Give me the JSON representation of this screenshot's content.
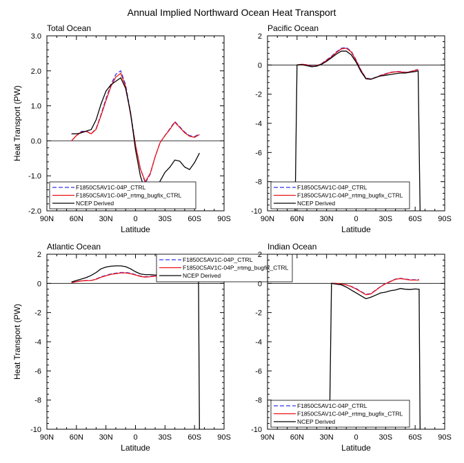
{
  "title": "Annual Implied Northward Ocean Heat Transport",
  "colors": {
    "ctrl": "#3333ee",
    "bugfix": "#ee1111",
    "ncep": "#000000"
  },
  "series_styles": [
    {
      "key": "ctrl",
      "dash": true
    },
    {
      "key": "bugfix",
      "dash": false
    },
    {
      "key": "ncep",
      "dash": false
    }
  ],
  "chart_data": [
    {
      "type": "line",
      "title": "Total Ocean",
      "xlabel": "Latitude",
      "ylabel": "Heat Transport (PW)",
      "xlim": [
        90,
        -90
      ],
      "ylim": [
        -2,
        3
      ],
      "x_ticks": [
        90,
        60,
        30,
        0,
        -30,
        -60,
        -90
      ],
      "x_tick_labels": [
        "90N",
        "60N",
        "30N",
        "0",
        "30S",
        "60S",
        "90S"
      ],
      "y_ticks": [
        -2,
        -1,
        0,
        1,
        2,
        3
      ],
      "y_tick_labels": [
        "-2.0",
        "-1.0",
        "0.0",
        "1.0",
        "2.0",
        "3.0"
      ],
      "legend_position": "bottom-left",
      "zero_line": true,
      "series": [
        {
          "name": "F1850C5AV1C-04P_CTRL",
          "x": [
            65,
            60,
            55,
            50,
            45,
            40,
            35,
            30,
            25,
            20,
            15,
            10,
            5,
            0,
            -5,
            -10,
            -15,
            -20,
            -25,
            -30,
            -35,
            -40,
            -45,
            -50,
            -55,
            -60,
            -65
          ],
          "y": [
            0,
            0.15,
            0.27,
            0.28,
            0.2,
            0.35,
            0.75,
            1.2,
            1.6,
            1.9,
            2.0,
            1.6,
            0.8,
            -0.1,
            -0.8,
            -1.2,
            -0.95,
            -0.45,
            -0.05,
            0.15,
            0.35,
            0.55,
            0.4,
            0.25,
            0.15,
            0.12,
            0.2
          ]
        },
        {
          "name": "F1850C5AV1C-04P_rrtmg_bugfix_CTRL",
          "x": [
            65,
            60,
            55,
            50,
            45,
            40,
            35,
            30,
            25,
            20,
            15,
            10,
            5,
            0,
            -5,
            -10,
            -15,
            -20,
            -25,
            -30,
            -35,
            -40,
            -45,
            -50,
            -55,
            -60,
            -65
          ],
          "y": [
            0,
            0.15,
            0.25,
            0.27,
            0.2,
            0.33,
            0.72,
            1.15,
            1.55,
            1.82,
            1.93,
            1.55,
            0.75,
            -0.12,
            -0.8,
            -1.17,
            -0.93,
            -0.45,
            -0.05,
            0.15,
            0.33,
            0.53,
            0.38,
            0.23,
            0.13,
            0.1,
            0.18
          ]
        },
        {
          "name": "NCEP Derived",
          "x": [
            65,
            60,
            55,
            50,
            45,
            40,
            35,
            30,
            25,
            20,
            15,
            10,
            5,
            0,
            -5,
            -10,
            -15,
            -20,
            -25,
            -30,
            -35,
            -40,
            -45,
            -50,
            -55,
            -60,
            -65
          ],
          "y": [
            0.2,
            0.2,
            0.23,
            0.28,
            0.32,
            0.6,
            1.05,
            1.42,
            1.6,
            1.7,
            1.8,
            1.5,
            0.8,
            -0.25,
            -1.0,
            -1.45,
            -1.6,
            -1.4,
            -1.15,
            -0.9,
            -0.75,
            -0.55,
            -0.58,
            -0.75,
            -0.82,
            -0.62,
            -0.35
          ]
        }
      ]
    },
    {
      "type": "line",
      "title": "Pacific Ocean",
      "xlabel": "Latitude",
      "ylabel": "",
      "xlim": [
        90,
        -90
      ],
      "ylim": [
        -10,
        2
      ],
      "x_ticks": [
        90,
        60,
        30,
        0,
        -30,
        -60,
        -90
      ],
      "x_tick_labels": [
        "90N",
        "60N",
        "30N",
        "0",
        "30S",
        "60S",
        "90S"
      ],
      "y_ticks": [
        -10,
        -8,
        -6,
        -4,
        -2,
        0,
        2
      ],
      "y_tick_labels": [
        "-10",
        "-8",
        "-6",
        "-4",
        "-2",
        "0",
        "2"
      ],
      "legend_position": "bottom-left",
      "zero_line": true,
      "series": [
        {
          "name": "F1850C5AV1C-04P_CTRL",
          "x": [
            60,
            55,
            50,
            45,
            40,
            35,
            30,
            25,
            20,
            15,
            10,
            5,
            0,
            -5,
            -10,
            -15,
            -20,
            -25,
            -30,
            -35,
            -40,
            -45,
            -50,
            -55,
            -60,
            -63
          ],
          "y": [
            0,
            0.05,
            0.02,
            -0.08,
            -0.05,
            0.1,
            0.35,
            0.6,
            0.9,
            1.15,
            1.2,
            0.95,
            0.35,
            -0.35,
            -0.9,
            -0.95,
            -0.85,
            -0.7,
            -0.6,
            -0.5,
            -0.45,
            -0.45,
            -0.5,
            -0.45,
            -0.35,
            -0.3
          ]
        },
        {
          "name": "F1850C5AV1C-04P_rrtmg_bugfix_CTRL",
          "x": [
            60,
            55,
            50,
            45,
            40,
            35,
            30,
            25,
            20,
            15,
            10,
            5,
            0,
            -5,
            -10,
            -15,
            -20,
            -25,
            -30,
            -35,
            -40,
            -45,
            -50,
            -55,
            -60,
            -63
          ],
          "y": [
            0,
            0.05,
            0.0,
            -0.1,
            -0.05,
            0.08,
            0.32,
            0.55,
            0.85,
            1.1,
            1.15,
            0.9,
            0.3,
            -0.38,
            -0.92,
            -0.97,
            -0.87,
            -0.72,
            -0.62,
            -0.52,
            -0.47,
            -0.47,
            -0.52,
            -0.47,
            -0.37,
            -0.32
          ]
        },
        {
          "name": "NCEP Derived",
          "x": [
            62,
            60,
            55,
            50,
            45,
            40,
            35,
            30,
            25,
            20,
            15,
            10,
            5,
            0,
            -5,
            -10,
            -15,
            -20,
            -25,
            -30,
            -35,
            -40,
            -45,
            -50,
            -55,
            -60,
            -63,
            -65
          ],
          "y": [
            -10,
            0,
            0.02,
            -0.05,
            -0.12,
            -0.08,
            0.05,
            0.25,
            0.5,
            0.75,
            0.95,
            0.95,
            0.7,
            0.2,
            -0.45,
            -0.95,
            -0.98,
            -0.85,
            -0.75,
            -0.7,
            -0.65,
            -0.6,
            -0.55,
            -0.55,
            -0.5,
            -0.45,
            -0.4,
            -10
          ]
        }
      ]
    },
    {
      "type": "line",
      "title": "Atlantic Ocean",
      "xlabel": "Latitude",
      "ylabel": "Heat Transport (PW)",
      "xlim": [
        90,
        -90
      ],
      "ylim": [
        -10,
        2
      ],
      "x_ticks": [
        90,
        60,
        30,
        0,
        -30,
        -60,
        -90
      ],
      "x_tick_labels": [
        "90N",
        "60N",
        "30N",
        "0",
        "30S",
        "60S",
        "90S"
      ],
      "y_ticks": [
        -10,
        -8,
        -6,
        -4,
        -2,
        0,
        2
      ],
      "y_tick_labels": [
        "-10",
        "-8",
        "-6",
        "-4",
        "-2",
        "0",
        "2"
      ],
      "legend_position": "top-center",
      "zero_line": true,
      "series": [
        {
          "name": "F1850C5AV1C-04P_CTRL",
          "x": [
            65,
            60,
            55,
            50,
            45,
            40,
            35,
            30,
            25,
            20,
            15,
            10,
            5,
            0,
            -5,
            -10,
            -15,
            -20,
            -25,
            -30,
            -35,
            -40,
            -45,
            -50,
            -55,
            -60,
            -64
          ],
          "y": [
            0.05,
            0.12,
            0.18,
            0.2,
            0.2,
            0.3,
            0.45,
            0.55,
            0.65,
            0.7,
            0.75,
            0.75,
            0.7,
            0.6,
            0.5,
            0.45,
            0.48,
            0.52,
            0.55,
            0.58,
            0.62,
            0.65,
            0.6,
            0.55,
            0.58,
            0.6,
            0.62
          ]
        },
        {
          "name": "F1850C5AV1C-04P_rrtmg_bugfix_CTRL",
          "x": [
            65,
            60,
            55,
            50,
            45,
            40,
            35,
            30,
            25,
            20,
            15,
            10,
            5,
            0,
            -5,
            -10,
            -15,
            -20,
            -25,
            -30,
            -35,
            -40,
            -45,
            -50,
            -55,
            -60,
            -64
          ],
          "y": [
            0.05,
            0.12,
            0.17,
            0.19,
            0.2,
            0.28,
            0.42,
            0.52,
            0.62,
            0.67,
            0.72,
            0.72,
            0.67,
            0.58,
            0.48,
            0.43,
            0.46,
            0.5,
            0.53,
            0.56,
            0.6,
            0.63,
            0.58,
            0.53,
            0.56,
            0.58,
            0.6
          ]
        },
        {
          "name": "NCEP Derived",
          "x": [
            65,
            60,
            55,
            50,
            45,
            40,
            35,
            30,
            25,
            20,
            15,
            10,
            5,
            0,
            -5,
            -10,
            -15,
            -20,
            -25,
            -30,
            -35,
            -40,
            -45,
            -50,
            -55,
            -60,
            -64,
            -65
          ],
          "y": [
            0.1,
            0.2,
            0.3,
            0.4,
            0.55,
            0.75,
            1.0,
            1.12,
            1.18,
            1.2,
            1.2,
            1.15,
            1.0,
            0.8,
            0.65,
            0.6,
            0.6,
            0.58,
            0.55,
            0.52,
            0.5,
            0.48,
            0.45,
            0.45,
            0.45,
            0.45,
            0.4,
            -10
          ]
        }
      ]
    },
    {
      "type": "line",
      "title": "Indian Ocean",
      "xlabel": "Latitude",
      "ylabel": "",
      "xlim": [
        90,
        -90
      ],
      "ylim": [
        -10,
        2
      ],
      "x_ticks": [
        90,
        60,
        30,
        0,
        -30,
        -60,
        -90
      ],
      "x_tick_labels": [
        "90N",
        "60N",
        "30N",
        "0",
        "30S",
        "60S",
        "90S"
      ],
      "y_ticks": [
        -10,
        -8,
        -6,
        -4,
        -2,
        0,
        2
      ],
      "y_tick_labels": [
        "-10",
        "-8",
        "-6",
        "-4",
        "-2",
        "0",
        "2"
      ],
      "legend_position": "bottom-left",
      "zero_line": true,
      "series": [
        {
          "name": "F1850C5AV1C-04P_CTRL",
          "x": [
            25,
            20,
            15,
            10,
            5,
            0,
            -5,
            -10,
            -15,
            -20,
            -25,
            -30,
            -35,
            -40,
            -45,
            -50,
            -55,
            -60,
            -64
          ],
          "y": [
            0,
            0,
            -0.05,
            -0.1,
            -0.2,
            -0.35,
            -0.55,
            -0.75,
            -0.7,
            -0.45,
            -0.2,
            0,
            0.15,
            0.3,
            0.35,
            0.3,
            0.25,
            0.25,
            0.25
          ]
        },
        {
          "name": "F1850C5AV1C-04P_rrtmg_bugfix_CTRL",
          "x": [
            25,
            20,
            15,
            10,
            5,
            0,
            -5,
            -10,
            -15,
            -20,
            -25,
            -30,
            -35,
            -40,
            -45,
            -50,
            -55,
            -60,
            -64
          ],
          "y": [
            0,
            0,
            -0.05,
            -0.1,
            -0.22,
            -0.38,
            -0.58,
            -0.78,
            -0.72,
            -0.47,
            -0.22,
            -0.02,
            0.13,
            0.28,
            0.33,
            0.28,
            0.23,
            0.23,
            0.23
          ]
        },
        {
          "name": "NCEP Derived",
          "x": [
            27,
            25,
            20,
            15,
            10,
            5,
            0,
            -5,
            -10,
            -15,
            -20,
            -25,
            -30,
            -35,
            -40,
            -45,
            -50,
            -55,
            -60,
            -64,
            -65
          ],
          "y": [
            -10,
            0,
            -0.05,
            -0.1,
            -0.25,
            -0.45,
            -0.65,
            -0.85,
            -1.05,
            -0.95,
            -0.8,
            -0.65,
            -0.6,
            -0.5,
            -0.45,
            -0.35,
            -0.4,
            -0.42,
            -0.38,
            -0.4,
            -10
          ]
        }
      ]
    }
  ]
}
